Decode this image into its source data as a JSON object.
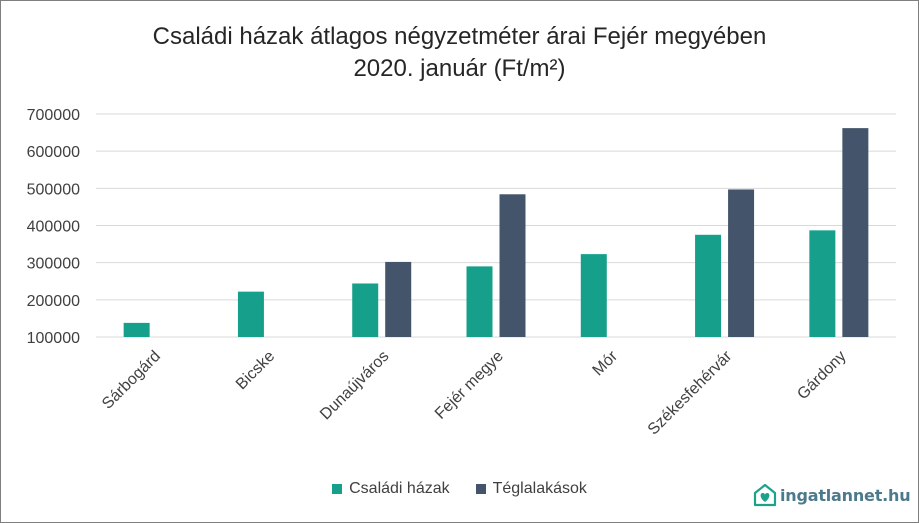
{
  "title_line1": "Családi házak átlagos négyzetméter árai Fejér megyében",
  "title_line2": "2020. január (Ft/m²)",
  "logo": {
    "text": "ingatlannet.hu",
    "icon": "house-heart-icon",
    "color": "#1aa38a"
  },
  "colors": {
    "series1": "#16a08c",
    "series2": "#44546a",
    "grid": "#d9d9d9",
    "text": "#404040"
  },
  "chart_data": {
    "type": "bar",
    "categories": [
      "Sárbogárd",
      "Bicske",
      "Dunaújváros",
      "Fejér megye",
      "Mór",
      "Székesfehérvár",
      "Gárdony"
    ],
    "series": [
      {
        "name": "Családi házak",
        "values": [
          138000,
          222000,
          244000,
          290000,
          323000,
          375000,
          387000
        ]
      },
      {
        "name": "Téglalakások",
        "values": [
          null,
          null,
          302000,
          484000,
          null,
          497000,
          662000
        ]
      }
    ],
    "yticks": [
      "700000",
      "600000",
      "500000",
      "400000",
      "300000",
      "200000",
      "100000"
    ],
    "ylim": [
      100000,
      700000
    ],
    "grid": true,
    "legend": "bottom"
  }
}
